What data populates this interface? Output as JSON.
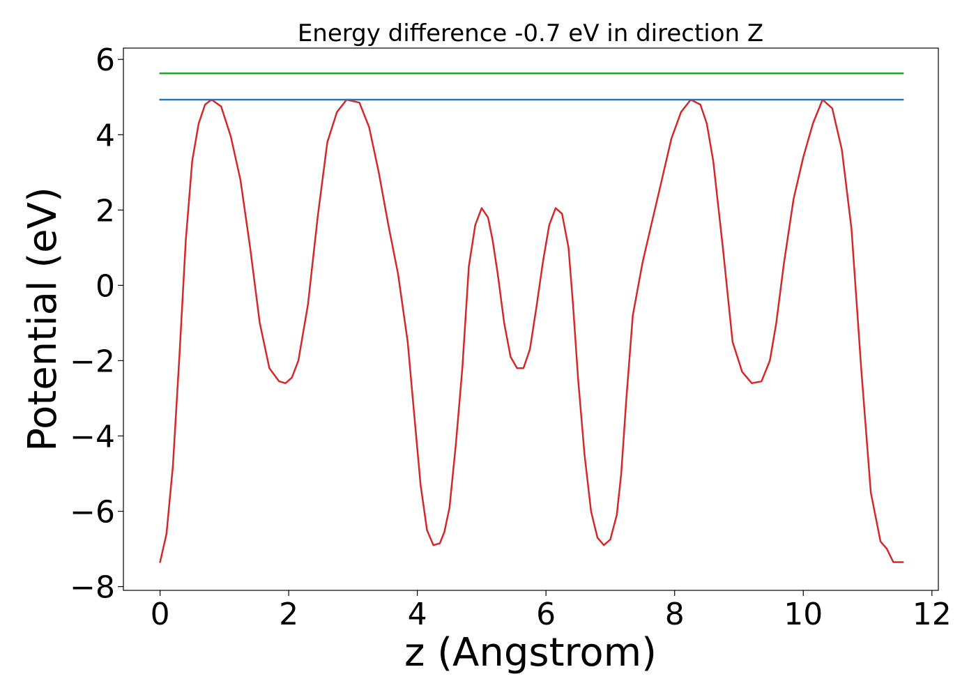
{
  "chart_data": {
    "type": "line",
    "title": "Energy difference -0.7 eV in direction Z",
    "xlabel": "z (Angstrom)",
    "ylabel": "Potential (eV)",
    "xlim": [
      -0.57,
      12.1
    ],
    "ylim": [
      -8.1,
      6.3
    ],
    "xticks": [
      0,
      2,
      4,
      6,
      8,
      10,
      12
    ],
    "yticks": [
      6,
      4,
      2,
      0,
      -2,
      -4,
      -6,
      -8
    ],
    "xtick_labels": [
      "0",
      "2",
      "4",
      "6",
      "8",
      "10",
      "12"
    ],
    "ytick_labels": [
      "6",
      "4",
      "2",
      "0",
      "−2",
      "−4",
      "−6",
      "−8"
    ],
    "grid": false,
    "series": [
      {
        "color": "#d62728",
        "x": [
          0.0,
          0.1,
          0.2,
          0.3,
          0.4,
          0.5,
          0.6,
          0.7,
          0.8,
          0.95,
          1.1,
          1.25,
          1.4,
          1.55,
          1.7,
          1.85,
          1.95,
          2.05,
          2.15,
          2.3,
          2.45,
          2.6,
          2.75,
          2.9,
          3.1,
          3.25,
          3.4,
          3.55,
          3.7,
          3.85,
          3.95,
          4.05,
          4.15,
          4.25,
          4.35,
          4.42,
          4.5,
          4.6,
          4.7,
          4.8,
          4.9,
          5.0,
          5.1,
          5.17,
          5.25,
          5.35,
          5.45,
          5.55,
          5.65,
          5.75,
          5.85,
          5.95,
          6.05,
          6.15,
          6.25,
          6.35,
          6.42,
          6.5,
          6.6,
          6.7,
          6.8,
          6.9,
          7.0,
          7.1,
          7.17,
          7.25,
          7.35,
          7.5,
          7.65,
          7.8,
          7.95,
          8.1,
          8.25,
          8.4,
          8.5,
          8.6,
          8.75,
          8.9,
          9.05,
          9.2,
          9.35,
          9.48,
          9.58,
          9.7,
          9.85,
          10.0,
          10.15,
          10.3,
          10.45,
          10.6,
          10.75,
          10.9,
          11.05,
          11.2,
          11.3,
          11.4,
          11.5,
          11.55
        ],
        "values": [
          -7.35,
          -6.6,
          -4.8,
          -1.9,
          1.2,
          3.3,
          4.3,
          4.8,
          4.93,
          4.75,
          3.95,
          2.8,
          1.0,
          -1.0,
          -2.2,
          -2.55,
          -2.6,
          -2.45,
          -2.0,
          -0.5,
          1.8,
          3.8,
          4.6,
          4.93,
          4.85,
          4.2,
          3.0,
          1.6,
          0.3,
          -1.5,
          -3.4,
          -5.3,
          -6.5,
          -6.9,
          -6.85,
          -6.55,
          -5.9,
          -4.2,
          -2.2,
          0.5,
          1.6,
          2.05,
          1.8,
          1.2,
          0.3,
          -1.0,
          -1.9,
          -2.2,
          -2.2,
          -1.7,
          -0.6,
          0.6,
          1.6,
          2.05,
          1.9,
          1.0,
          -0.5,
          -2.5,
          -4.5,
          -6.0,
          -6.7,
          -6.9,
          -6.75,
          -6.1,
          -5.0,
          -3.0,
          -0.8,
          0.6,
          1.7,
          2.8,
          3.9,
          4.6,
          4.93,
          4.8,
          4.3,
          3.3,
          1.0,
          -1.5,
          -2.3,
          -2.6,
          -2.55,
          -2.0,
          -1.0,
          0.6,
          2.3,
          3.4,
          4.3,
          4.93,
          4.7,
          3.6,
          1.5,
          -2.2,
          -5.5,
          -6.8,
          -7.0,
          -7.35,
          -7.35,
          -7.35
        ]
      },
      {
        "color": "#1f77b4",
        "x": [
          0.0,
          11.55
        ],
        "values": [
          4.93,
          4.93
        ]
      },
      {
        "color": "#2ca02c",
        "x": [
          0.0,
          11.55
        ],
        "values": [
          5.63,
          5.63
        ]
      }
    ]
  }
}
